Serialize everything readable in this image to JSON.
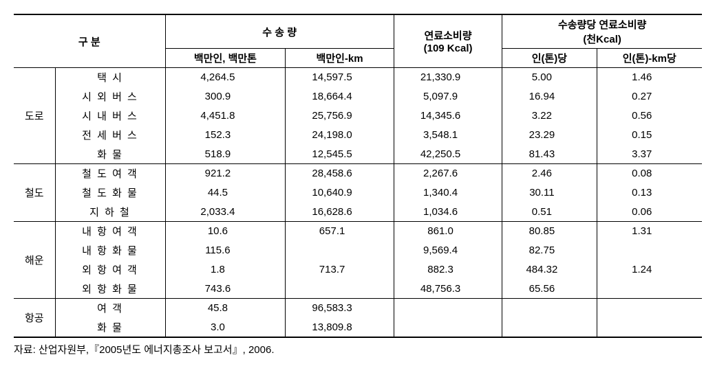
{
  "headers": {
    "category": "구 분",
    "volume": "수 송 량",
    "volume_sub1": "백만인, 백만톤",
    "volume_sub2": "백만인-km",
    "fuel": "연료소비량",
    "fuel_unit": "(109 Kcal)",
    "per_volume": "수송량당 연료소비량",
    "per_volume_unit": "(천Kcal)",
    "per_volume_sub1": "인(톤)당",
    "per_volume_sub2": "인(톤)-km당"
  },
  "groups": [
    {
      "label": "도로",
      "rows": [
        {
          "sub": "택 시",
          "v1": "4,264.5",
          "v2": "14,597.5",
          "fuel": "21,330.9",
          "p1": "5.00",
          "p2": "1.46"
        },
        {
          "sub": "시 외 버 스",
          "v1": "300.9",
          "v2": "18,664.4",
          "fuel": "5,097.9",
          "p1": "16.94",
          "p2": "0.27"
        },
        {
          "sub": "시 내 버 스",
          "v1": "4,451.8",
          "v2": "25,756.9",
          "fuel": "14,345.6",
          "p1": "3.22",
          "p2": "0.56"
        },
        {
          "sub": "전 세 버 스",
          "v1": "152.3",
          "v2": "24,198.0",
          "fuel": "3,548.1",
          "p1": "23.29",
          "p2": "0.15"
        },
        {
          "sub": "화 물",
          "v1": "518.9",
          "v2": "12,545.5",
          "fuel": "42,250.5",
          "p1": "81.43",
          "p2": "3.37"
        }
      ]
    },
    {
      "label": "철도",
      "rows": [
        {
          "sub": "철 도 여 객",
          "v1": "921.2",
          "v2": "28,458.6",
          "fuel": "2,267.6",
          "p1": "2.46",
          "p2": "0.08"
        },
        {
          "sub": "철 도 화 물",
          "v1": "44.5",
          "v2": "10,640.9",
          "fuel": "1,340.4",
          "p1": "30.11",
          "p2": "0.13"
        },
        {
          "sub": "지 하 철",
          "v1": "2,033.4",
          "v2": "16,628.6",
          "fuel": "1,034.6",
          "p1": "0.51",
          "p2": "0.06"
        }
      ]
    },
    {
      "label": "해운",
      "rows": [
        {
          "sub": "내 항 여 객",
          "v1": "10.6",
          "v2": "657.1",
          "fuel": "861.0",
          "p1": "80.85",
          "p2": "1.31"
        },
        {
          "sub": "내 항 화 물",
          "v1": "115.6",
          "v2": "",
          "fuel": "9,569.4",
          "p1": "82.75",
          "p2": ""
        },
        {
          "sub": "외 항 여 객",
          "v1": "1.8",
          "v2": "713.7",
          "fuel": "882.3",
          "p1": "484.32",
          "p2": "1.24"
        },
        {
          "sub": "외 항 화 물",
          "v1": "743.6",
          "v2": "",
          "fuel": "48,756.3",
          "p1": "65.56",
          "p2": ""
        }
      ]
    },
    {
      "label": "항공",
      "rows": [
        {
          "sub": "여 객",
          "v1": "45.8",
          "v2": "96,583.3",
          "fuel": "",
          "p1": "",
          "p2": ""
        },
        {
          "sub": "화 물",
          "v1": "3.0",
          "v2": "13,809.8",
          "fuel": "",
          "p1": "",
          "p2": ""
        }
      ]
    }
  ],
  "source": "자료: 산업자원부,『2005년도 에너지총조사 보고서』, 2006."
}
